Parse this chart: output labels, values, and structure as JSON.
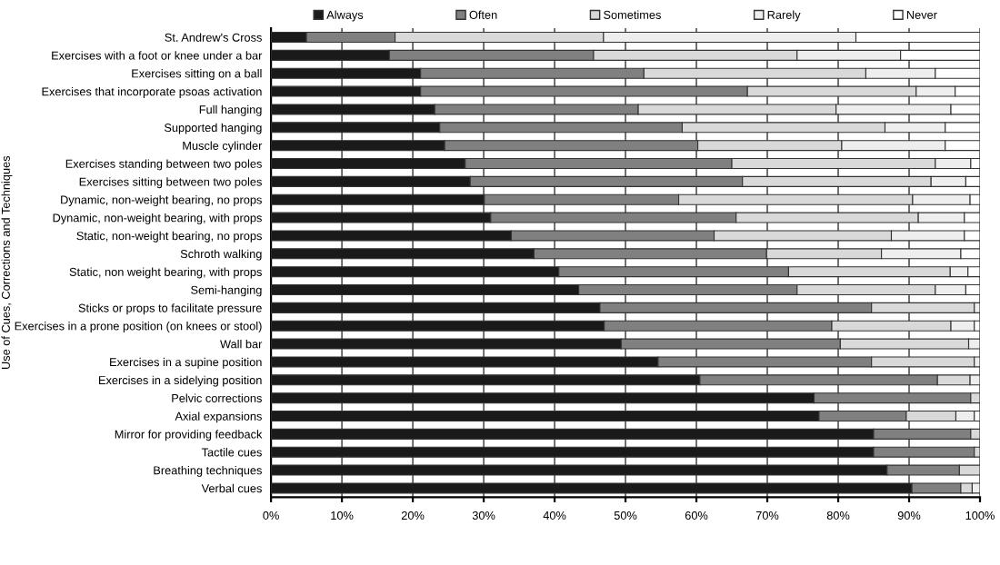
{
  "chart_data": {
    "type": "bar",
    "orientation": "horizontal",
    "stacked": true,
    "ylabel": "Use of Cues, Corrections and Techniques",
    "categories": [
      "St. Andrew's Cross",
      "Exercises with a foot or knee under a bar",
      "Exercises sitting on a ball",
      "Exercises that incorporate psoas activation",
      "Full hanging",
      "Supported hanging",
      "Muscle cylinder",
      "Exercises standing between two poles",
      "Exercises sitting between two poles",
      "Dynamic, non-weight bearing, no props",
      "Dynamic, non-weight bearing, with props",
      "Static, non-weight bearing, no props",
      "Schroth walking",
      "Static, non weight bearing, with props",
      "Semi-hanging",
      "Sticks or props to facilitate pressure",
      "Exercises in a prone position (on knees or stool)",
      "Wall bar",
      "Exercises in a supine position",
      "Exercises in a sidelying position",
      "Pelvic corrections",
      "Axial expansions",
      "Mirror for providing feedback",
      "Tactile cues",
      "Breathing techniques",
      "Verbal cues"
    ],
    "series": [
      {
        "name": "Always",
        "color": "#1a1a1a",
        "values": [
          5.0,
          16.7,
          21.1,
          21.1,
          23.1,
          23.8,
          24.5,
          27.4,
          28.1,
          30.1,
          31.0,
          33.9,
          37.1,
          40.6,
          43.4,
          46.4,
          47.0,
          49.4,
          54.6,
          60.5,
          76.6,
          77.3,
          85.0,
          85.0,
          86.9,
          90.4
        ]
      },
      {
        "name": "Often",
        "color": "#808080",
        "values": [
          12.5,
          28.8,
          31.5,
          46.1,
          28.7,
          34.2,
          35.7,
          37.6,
          38.4,
          27.4,
          34.6,
          28.6,
          32.8,
          32.4,
          30.8,
          38.3,
          32.1,
          30.9,
          30.1,
          33.5,
          22.1,
          12.3,
          13.7,
          14.2,
          10.2,
          6.9
        ]
      },
      {
        "name": "Sometimes",
        "color": "#d9d9d9",
        "values": [
          29.4,
          28.7,
          31.3,
          23.8,
          27.9,
          28.6,
          20.3,
          28.7,
          26.6,
          33.0,
          25.7,
          25.0,
          16.2,
          22.8,
          19.5,
          14.5,
          16.8,
          18.1,
          14.5,
          4.6,
          1.3,
          7.0,
          1.3,
          0.8,
          2.9,
          1.6
        ]
      },
      {
        "name": "Rarely",
        "color": "#eeeeee",
        "values": [
          35.6,
          14.6,
          9.8,
          5.5,
          16.2,
          8.5,
          14.6,
          5.0,
          4.9,
          8.1,
          6.5,
          10.3,
          11.2,
          2.5,
          4.3,
          0.8,
          3.3,
          1.6,
          0.8,
          1.4,
          0,
          2.6,
          0,
          0,
          0,
          1.1
        ]
      },
      {
        "name": "Never",
        "color": "#ffffff",
        "values": [
          17.5,
          11.2,
          6.3,
          3.5,
          4.1,
          4.9,
          4.9,
          1.3,
          2.0,
          1.4,
          2.2,
          2.2,
          2.7,
          1.7,
          2.0,
          0,
          0.8,
          0,
          0,
          0,
          0,
          0.8,
          0,
          0,
          0,
          0
        ]
      }
    ],
    "xlim": [
      0,
      100
    ],
    "xticks": [
      {
        "value": 0,
        "label": "0%"
      },
      {
        "value": 10,
        "label": "10%"
      },
      {
        "value": 20,
        "label": "20%"
      },
      {
        "value": 30,
        "label": "30%"
      },
      {
        "value": 40,
        "label": "40%"
      },
      {
        "value": 50,
        "label": "50%"
      },
      {
        "value": 60,
        "label": "60%"
      },
      {
        "value": 70,
        "label": "70%"
      },
      {
        "value": 80,
        "label": "80%"
      },
      {
        "value": 90,
        "label": "90%"
      },
      {
        "value": 100,
        "label": "100%"
      }
    ],
    "grid": "x",
    "legend": "top"
  }
}
